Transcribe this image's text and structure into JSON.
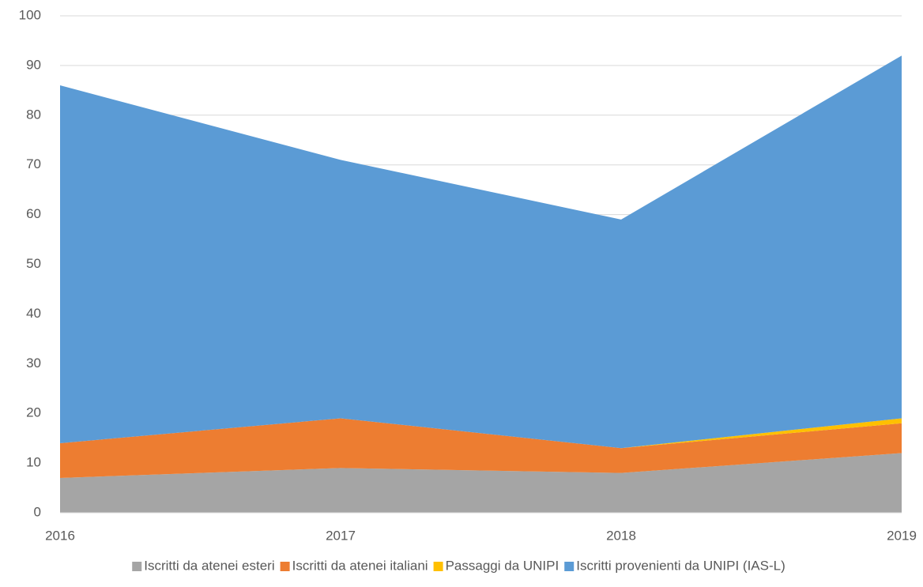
{
  "chart_data": {
    "type": "area",
    "stacked": true,
    "categories": [
      "2016",
      "2017",
      "2018",
      "2019"
    ],
    "series": [
      {
        "name": "Iscritti da atenei esteri",
        "color": "#a5a5a5",
        "values": [
          7,
          9,
          8,
          12
        ]
      },
      {
        "name": "Iscritti da atenei italiani",
        "color": "#ed7d31",
        "values": [
          7,
          10,
          5,
          6
        ]
      },
      {
        "name": "Passaggi da UNIPI",
        "color": "#ffc000",
        "values": [
          0,
          0,
          0,
          1
        ]
      },
      {
        "name": "Iscritti provenienti da UNIPI (IAS-L)",
        "color": "#5b9bd5",
        "values": [
          72,
          52,
          46,
          73
        ]
      }
    ],
    "ylim": [
      0,
      100
    ],
    "yticks": [
      0,
      10,
      20,
      30,
      40,
      50,
      60,
      70,
      80,
      90,
      100
    ],
    "grid": true,
    "legend": "bottom"
  }
}
